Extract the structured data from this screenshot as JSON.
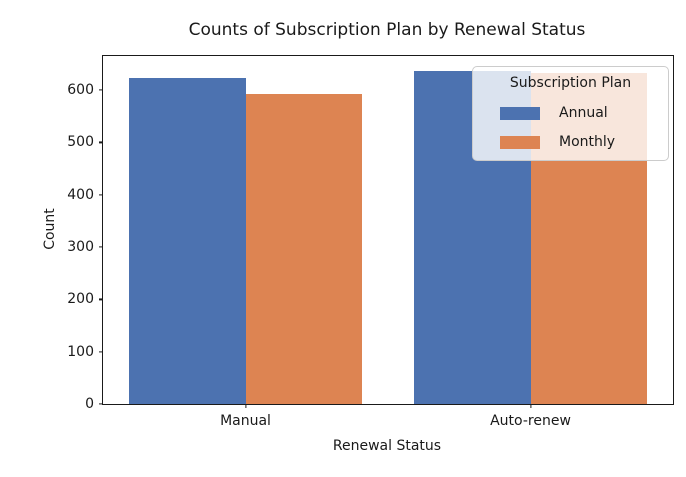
{
  "chart_data": {
    "type": "bar",
    "title": "Counts of Subscription Plan by Renewal Status",
    "xlabel": "Renewal Status",
    "ylabel": "Count",
    "categories": [
      "Manual",
      "Auto-renew"
    ],
    "series": [
      {
        "name": "Annual",
        "color": "#4C72B0",
        "values": [
          623,
          636
        ]
      },
      {
        "name": "Monthly",
        "color": "#DD8452",
        "values": [
          592,
          632
        ]
      }
    ],
    "yticks": [
      0,
      100,
      200,
      300,
      400,
      500,
      600
    ],
    "ylim": [
      0,
      665
    ],
    "grid": false,
    "legend": {
      "title": "Subscription Plan",
      "position": "upper right"
    }
  }
}
